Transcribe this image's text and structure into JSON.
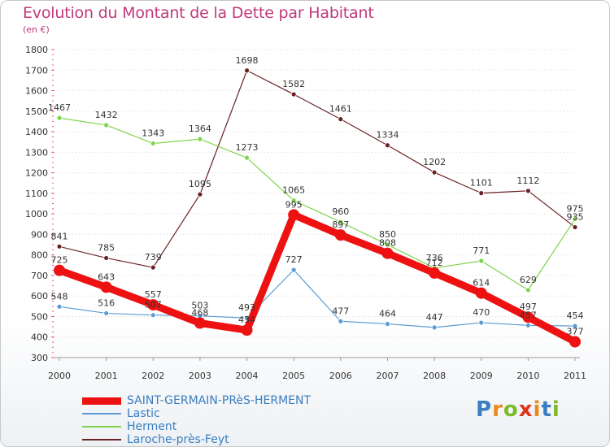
{
  "header": {
    "title": "Evolution du Montant de la Dette par Habitant",
    "subtitle": "(en €)"
  },
  "logo": {
    "text": "Proxiti"
  },
  "chart_data": {
    "type": "line",
    "title": "Evolution du Montant de la Dette par Habitant",
    "subtitle": "(en €)",
    "xlabel": "",
    "ylabel": "",
    "categories": [
      "2000",
      "2001",
      "2002",
      "2003",
      "2004",
      "2005",
      "2006",
      "2007",
      "2008",
      "2009",
      "2010",
      "2011"
    ],
    "ylim": [
      300,
      1800
    ],
    "yticks": [
      300,
      400,
      500,
      600,
      700,
      800,
      900,
      1000,
      1100,
      1200,
      1300,
      1400,
      1500,
      1600,
      1700,
      1800
    ],
    "grid": "horizontal-dotted",
    "legend_position": "bottom-left",
    "series": [
      {
        "name": "SAINT-GERMAIN-PRèS-HERMENT",
        "color": "#ee1111",
        "values": [
          725,
          643,
          557,
          468,
          434,
          995,
          897,
          808,
          712,
          614,
          497,
          377
        ]
      },
      {
        "name": "Lastic",
        "color": "#5b9bd5",
        "values": [
          548,
          516,
          507,
          503,
          493,
          727,
          477,
          464,
          447,
          470,
          457,
          454
        ]
      },
      {
        "name": "Herment",
        "color": "#7dd44a",
        "values": [
          1467,
          1432,
          1343,
          1364,
          1273,
          1065,
          960,
          850,
          736,
          771,
          629,
          975
        ]
      },
      {
        "name": "Laroche-près-Feyt",
        "color": "#6b2124",
        "values": [
          841,
          785,
          739,
          1095,
          1698,
          1582,
          1461,
          1334,
          1202,
          1101,
          1112,
          935
        ]
      }
    ]
  }
}
